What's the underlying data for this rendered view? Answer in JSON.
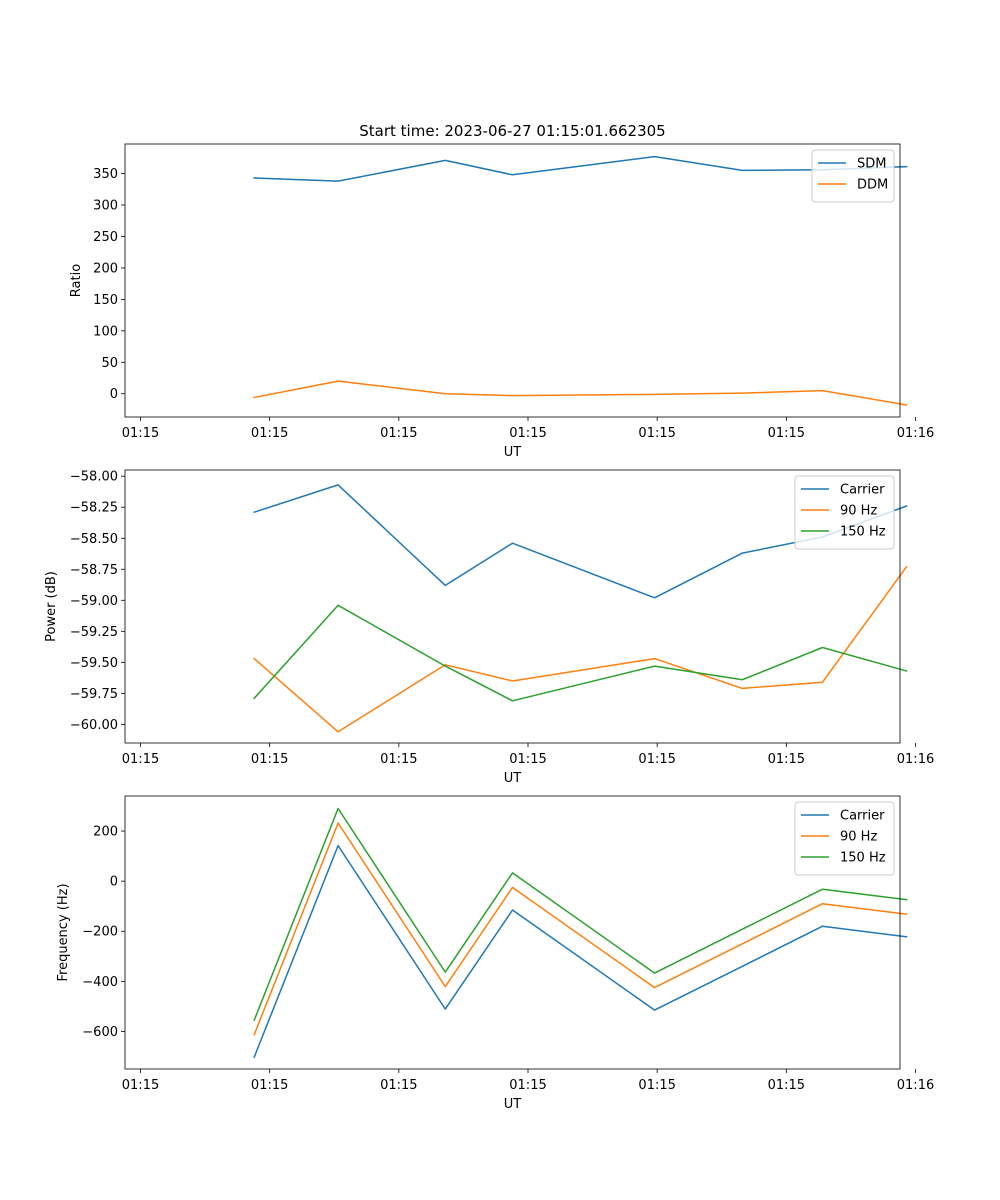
{
  "chart_data": [
    {
      "type": "line",
      "title": "Start time: 2023-06-27 01:15:01.662305",
      "xlabel": "UT",
      "ylabel": "Ratio",
      "x": [
        1.0,
        1.65,
        2.48,
        3.0,
        4.1,
        4.78,
        5.4,
        6.05
      ],
      "xlim": [
        0,
        6
      ],
      "xticks": [
        0.12,
        1.12,
        2.12,
        3.12,
        4.12,
        5.12,
        6.12
      ],
      "xtick_labels": [
        "01:15",
        "01:15",
        "01:15",
        "01:15",
        "01:15",
        "01:15",
        "01:16"
      ],
      "ylim": [
        -37,
        397
      ],
      "yticks": [
        0,
        50,
        100,
        150,
        200,
        250,
        300,
        350
      ],
      "ytick_labels": [
        "0",
        "50",
        "100",
        "150",
        "200",
        "250",
        "300",
        "350"
      ],
      "legend": "top-right",
      "series": [
        {
          "name": "SDM",
          "color": "#1f77b4",
          "values": [
            343,
            338,
            371,
            348,
            377,
            355,
            356,
            361
          ]
        },
        {
          "name": "DDM",
          "color": "#ff7f0e",
          "values": [
            -6,
            20,
            0,
            -3,
            -1,
            1,
            5,
            -18
          ]
        }
      ]
    },
    {
      "type": "line",
      "title": "",
      "xlabel": "UT",
      "ylabel": "Power (dB)",
      "x": [
        1.0,
        1.65,
        2.48,
        3.0,
        4.1,
        4.78,
        5.4,
        6.05
      ],
      "xlim": [
        0,
        6
      ],
      "xticks": [
        0.12,
        1.12,
        2.12,
        3.12,
        4.12,
        5.12,
        6.12
      ],
      "xtick_labels": [
        "01:15",
        "01:15",
        "01:15",
        "01:15",
        "01:15",
        "01:15",
        "01:16"
      ],
      "ylim": [
        -60.15,
        -57.95
      ],
      "yticks": [
        -60.0,
        -59.75,
        -59.5,
        -59.25,
        -59.0,
        -58.75,
        -58.5,
        -58.25,
        -58.0
      ],
      "ytick_labels": [
        "−60.00",
        "−59.75",
        "−59.50",
        "−59.25",
        "−59.00",
        "−58.75",
        "−58.50",
        "−58.25",
        "−58.00"
      ],
      "legend": "top-right",
      "series": [
        {
          "name": "Carrier",
          "color": "#1f77b4",
          "values": [
            -58.29,
            -58.07,
            -58.88,
            -58.54,
            -58.98,
            -58.62,
            -58.49,
            -58.24
          ]
        },
        {
          "name": "90 Hz",
          "color": "#ff7f0e",
          "values": [
            -59.47,
            -60.06,
            -59.52,
            -59.65,
            -59.47,
            -59.71,
            -59.66,
            -58.73
          ]
        },
        {
          "name": "150 Hz",
          "color": "#2ca02c",
          "values": [
            -59.79,
            -59.04,
            -59.53,
            -59.81,
            -59.53,
            -59.64,
            -59.38,
            -59.57
          ]
        }
      ]
    },
    {
      "type": "line",
      "title": "",
      "xlabel": "UT",
      "ylabel": "Frequency (Hz)",
      "x": [
        1.0,
        1.65,
        2.48,
        3.0,
        4.1,
        4.78,
        5.4,
        6.05
      ],
      "xlim": [
        0,
        6
      ],
      "xticks": [
        0.12,
        1.12,
        2.12,
        3.12,
        4.12,
        5.12,
        6.12
      ],
      "xtick_labels": [
        "01:15",
        "01:15",
        "01:15",
        "01:15",
        "01:15",
        "01:15",
        "01:16"
      ],
      "ylim": [
        -750,
        340
      ],
      "yticks": [
        -600,
        -400,
        -200,
        0,
        200
      ],
      "ytick_labels": [
        "−600",
        "−400",
        "−200",
        "0",
        "200"
      ],
      "legend": "top-right",
      "series": [
        {
          "name": "Carrier",
          "color": "#1f77b4",
          "values": [
            -703,
            142,
            -511,
            -115,
            -515,
            -340,
            -180,
            -222
          ]
        },
        {
          "name": "90 Hz",
          "color": "#ff7f0e",
          "values": [
            -613,
            232,
            -421,
            -25,
            -425,
            -250,
            -90,
            -132
          ]
        },
        {
          "name": "150 Hz",
          "color": "#2ca02c",
          "values": [
            -555,
            290,
            -363,
            33,
            -367,
            -192,
            -32,
            -74
          ]
        }
      ]
    }
  ]
}
